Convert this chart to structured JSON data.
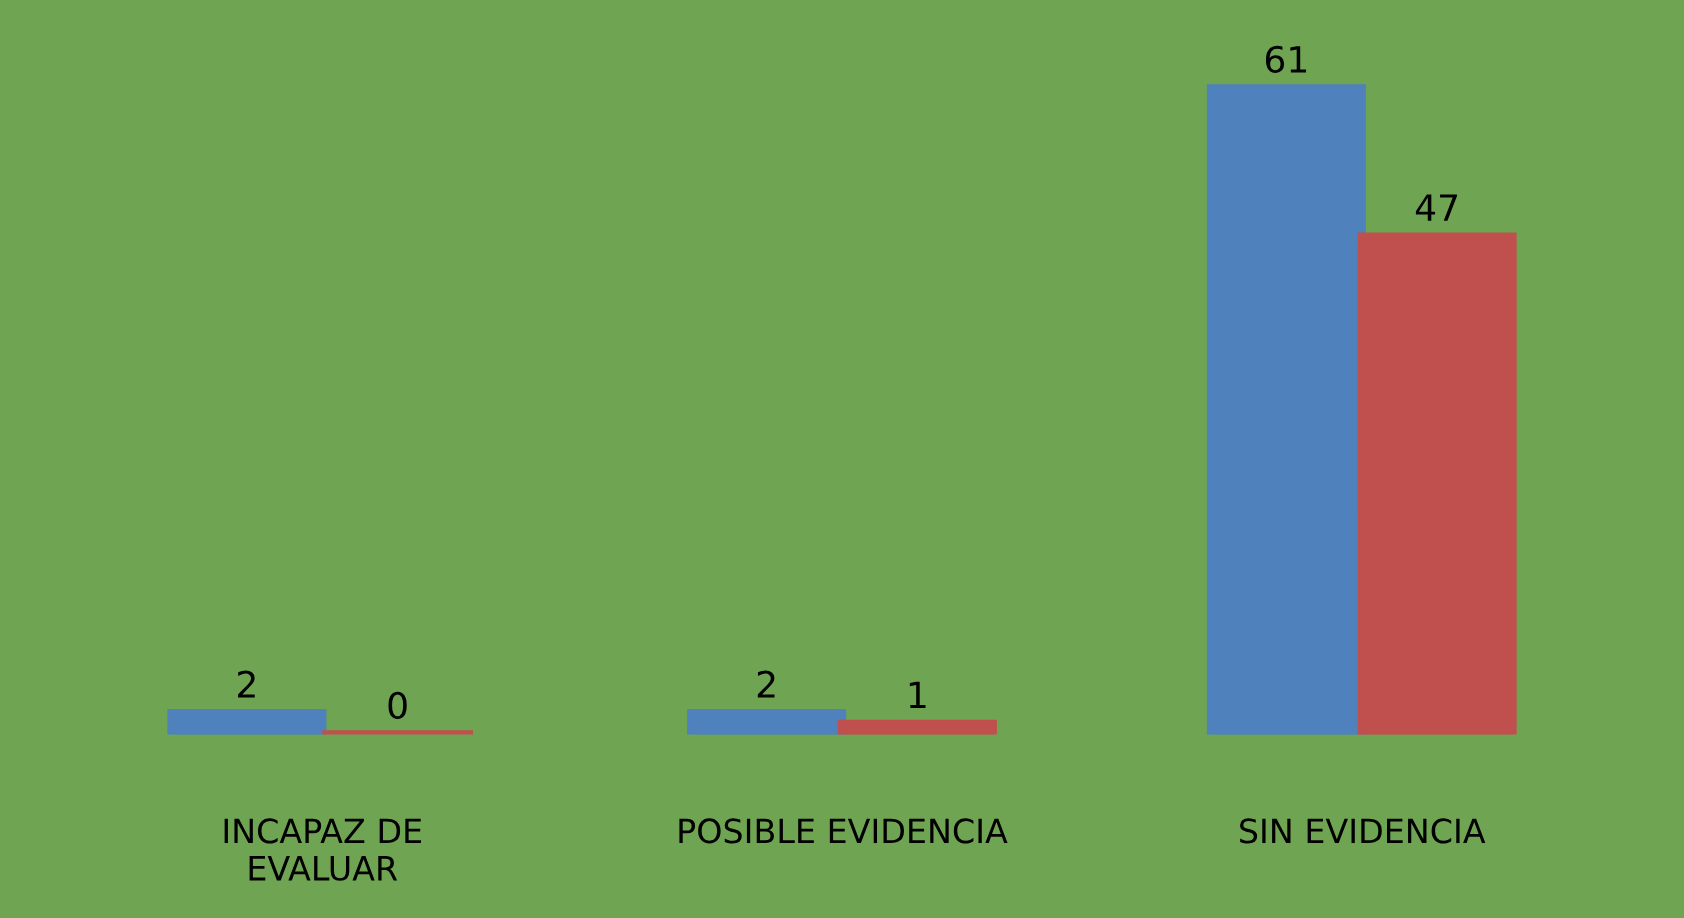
{
  "chart_data": {
    "type": "bar",
    "categories": [
      "INCAPAZ DE\nEVALUAR",
      "POSIBLE EVIDENCIA",
      "SIN EVIDENCIA"
    ],
    "series": [
      {
        "color": "#4f81bd",
        "values": [
          2,
          2,
          61
        ]
      },
      {
        "color": "#c0504d",
        "values": [
          0,
          1,
          47
        ]
      }
    ],
    "data_labels": true,
    "grid": false,
    "legend": false
  }
}
